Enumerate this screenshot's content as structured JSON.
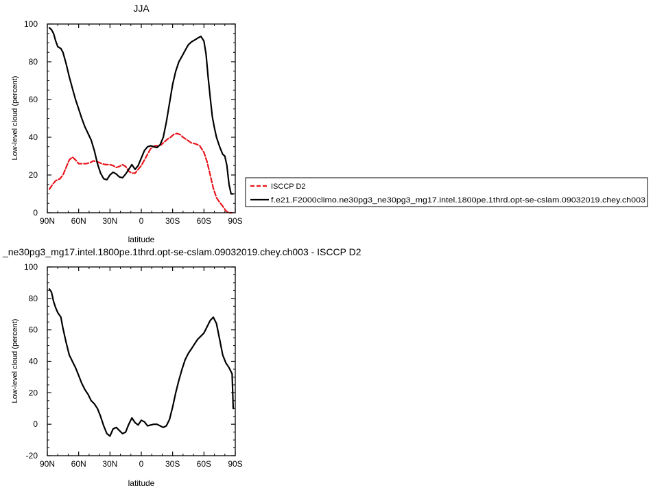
{
  "chart_data": [
    {
      "type": "line",
      "title": "JJA",
      "xlabel": "latitude",
      "ylabel": "Low-level cloud (percent)",
      "xlim": [
        90,
        -90
      ],
      "ylim": [
        0,
        100
      ],
      "x_ticks": [
        90,
        60,
        30,
        0,
        -30,
        -60,
        -90
      ],
      "x_tick_labels": [
        "90N",
        "60N",
        "30N",
        "0",
        "30S",
        "60S",
        "90S"
      ],
      "y_ticks": [
        0,
        20,
        40,
        60,
        80,
        100
      ],
      "y_tick_labels": [
        "0",
        "20",
        "40",
        "60",
        "80",
        "100"
      ],
      "legend_position": "right",
      "series": [
        {
          "name": "ISCCP D2",
          "color": "#e8141b",
          "dash": "dashed",
          "x": [
            88,
            85,
            82,
            78,
            75,
            72,
            69,
            66,
            63,
            60,
            56,
            53,
            49,
            46,
            42,
            38,
            34,
            30,
            27,
            24,
            21,
            18,
            15,
            12,
            9,
            6,
            3,
            0,
            -3,
            -6,
            -9,
            -13,
            -16,
            -19,
            -22,
            -25,
            -28,
            -31,
            -34,
            -37,
            -40,
            -44,
            -48,
            -52,
            -56,
            -60,
            -63,
            -66,
            -69,
            -72,
            -75,
            -78,
            -81,
            -84,
            -87
          ],
          "y": [
            12.5,
            15,
            17,
            18,
            20,
            24,
            28,
            29.5,
            28,
            26,
            26,
            26,
            26.5,
            27.5,
            27,
            26,
            25.5,
            25.5,
            25,
            24,
            24.5,
            25.5,
            24.5,
            22,
            21,
            21,
            23,
            25,
            28,
            31,
            34,
            35.5,
            35.5,
            36,
            37.5,
            39,
            40,
            41.5,
            42,
            41.5,
            40,
            38.5,
            37,
            36.5,
            35.5,
            32,
            27,
            20,
            13,
            8,
            5.5,
            3.5,
            1,
            0,
            0
          ]
        },
        {
          "name": "f.e21.F2000climo.ne30pg3_ne30pg3_mg17.intel.1800pe.1thrd.opt-se-cslam.09032019.chey.ch003",
          "color": "#000000",
          "dash": "solid",
          "x": [
            88,
            86,
            84,
            82,
            80,
            77,
            75,
            72,
            69,
            66,
            63,
            60,
            57,
            54,
            51,
            48,
            45,
            42,
            39,
            36,
            33,
            30,
            27,
            24,
            21,
            18,
            15,
            12,
            9,
            6,
            3,
            0,
            -3,
            -6,
            -9,
            -12,
            -15,
            -18,
            -21,
            -24,
            -27,
            -30,
            -33,
            -36,
            -39,
            -42,
            -45,
            -48,
            -51,
            -54,
            -57,
            -60,
            -62,
            -64,
            -66,
            -68,
            -70,
            -72,
            -75,
            -78,
            -80,
            -82,
            -84,
            -86,
            -88
          ],
          "y": [
            98,
            97,
            95,
            91,
            88,
            87,
            85,
            79,
            72,
            66,
            60,
            55,
            50,
            45.5,
            42,
            38.5,
            33,
            26,
            21,
            18,
            17.5,
            20,
            21.5,
            20.5,
            19,
            18.5,
            20.5,
            23,
            25.5,
            23,
            25,
            29,
            33,
            35,
            35.5,
            35,
            34.5,
            36,
            40,
            48,
            58,
            68,
            75,
            80,
            83,
            86,
            89,
            90.5,
            91.5,
            92.5,
            93.5,
            91,
            84,
            72,
            61,
            51,
            45,
            40,
            35,
            31,
            30,
            25,
            15,
            10,
            10
          ]
        }
      ]
    },
    {
      "type": "line",
      "title": "_ne30pg3_mg17.intel.1800pe.1thrd.opt-se-cslam.09032019.chey.ch003 - ISCCP D2",
      "xlabel": "latitude",
      "ylabel": "Low-level cloud (percent)",
      "xlim": [
        90,
        -90
      ],
      "ylim": [
        -20,
        100
      ],
      "x_ticks": [
        90,
        60,
        30,
        0,
        -30,
        -60,
        -90
      ],
      "x_tick_labels": [
        "90N",
        "60N",
        "30N",
        "0",
        "30S",
        "60S",
        "90S"
      ],
      "y_ticks": [
        -20,
        0,
        20,
        40,
        60,
        80,
        100
      ],
      "y_tick_labels": [
        "-20",
        "0",
        "20",
        "40",
        "60",
        "80",
        "100"
      ],
      "series": [
        {
          "color": "#000000",
          "dash": "solid",
          "x": [
            88,
            86,
            84,
            82,
            80,
            77,
            75,
            72,
            69,
            66,
            63,
            60,
            57,
            54,
            51,
            48,
            45,
            42,
            39,
            36,
            33,
            30,
            27,
            24,
            21,
            18,
            15,
            12,
            9,
            6,
            3,
            0,
            -3,
            -6,
            -9,
            -12,
            -15,
            -18,
            -21,
            -24,
            -27,
            -30,
            -33,
            -36,
            -39,
            -42,
            -45,
            -48,
            -51,
            -54,
            -57,
            -60,
            -63,
            -66,
            -69,
            -72,
            -75,
            -78,
            -81,
            -84,
            -87,
            -88
          ],
          "y": [
            86,
            84,
            78,
            74,
            71,
            68,
            61,
            52,
            44,
            40,
            36,
            31,
            26,
            22,
            19,
            15,
            13,
            10,
            5,
            -1,
            -6,
            -7.5,
            -3,
            -2,
            -4,
            -6,
            -5,
            0,
            4,
            1,
            -0.5,
            2.5,
            1.5,
            -1,
            -0.5,
            0,
            0,
            -1,
            -2,
            -1,
            3,
            11,
            20,
            28,
            35,
            41,
            45,
            48,
            51,
            54,
            56,
            58,
            62,
            66,
            68,
            64,
            54,
            44,
            39,
            36,
            32,
            10
          ]
        }
      ]
    }
  ]
}
